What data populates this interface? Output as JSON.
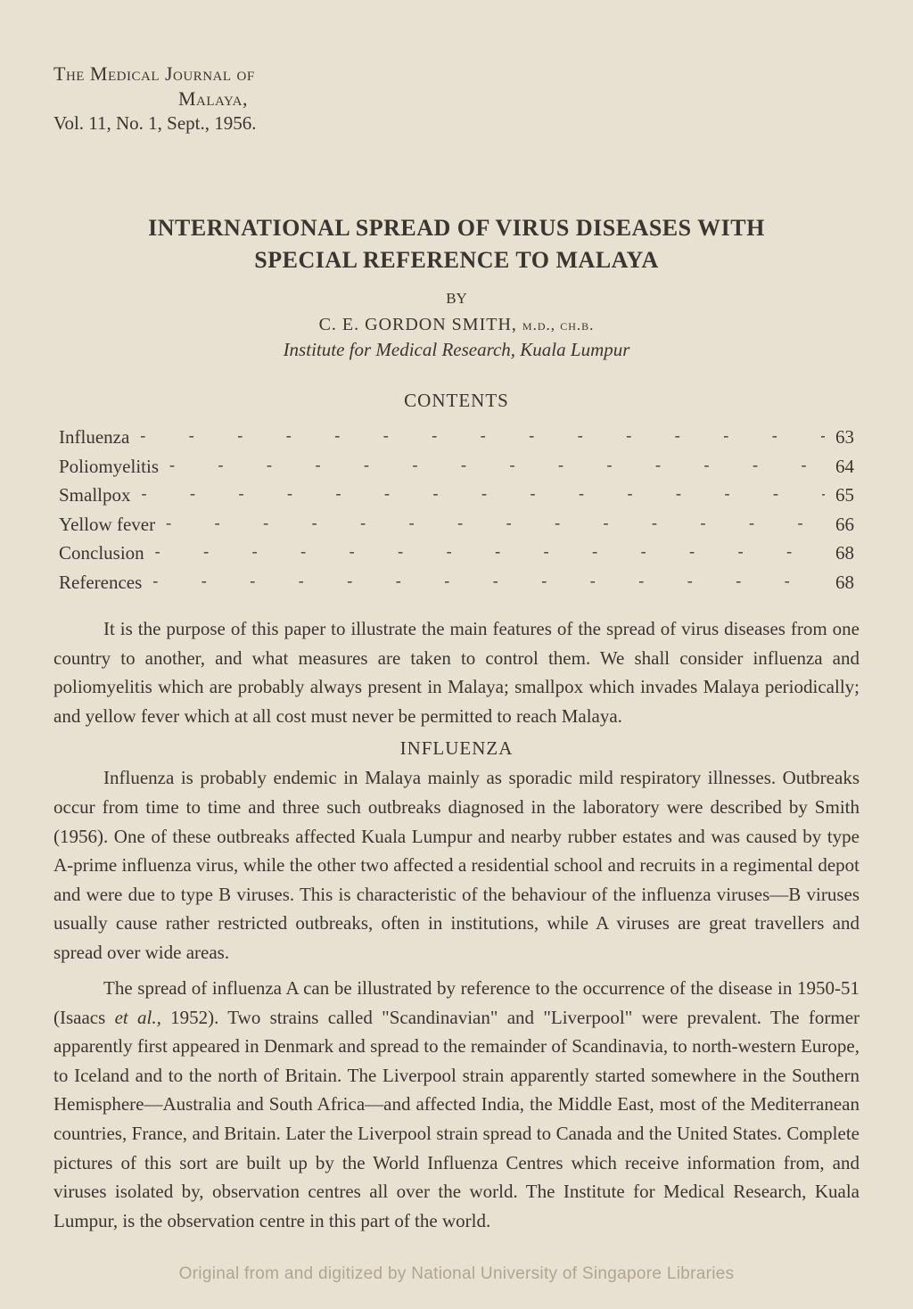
{
  "header": {
    "journal_title": "The Medical Journal of",
    "journal_subtitle": "Malaya,",
    "volume_info": "Vol. 11, No. 1, Sept., 1956."
  },
  "article": {
    "title_line1": "INTERNATIONAL SPREAD OF VIRUS DISEASES WITH",
    "title_line2": "SPECIAL REFERENCE TO MALAYA",
    "by": "BY",
    "author_name": "C. E. GORDON SMITH, ",
    "author_credentials": "m.d., ch.b.",
    "institute": "Institute for Medical Research, Kuala Lumpur"
  },
  "contents": {
    "heading": "CONTENTS",
    "items": [
      {
        "label": "Influenza",
        "page": "63"
      },
      {
        "label": "Poliomyelitis",
        "page": "64"
      },
      {
        "label": "Smallpox",
        "page": "65"
      },
      {
        "label": "Yellow fever",
        "page": "66"
      },
      {
        "label": "Conclusion",
        "page": "68"
      },
      {
        "label": "References",
        "page": "68"
      }
    ]
  },
  "paragraphs": {
    "intro": "It is the purpose of this paper to illustrate the main features of the spread of virus diseases from one country to another, and what measures are taken to control them. We shall consider influenza and poliomyelitis which are probably always present in Malaya; smallpox which invades Malaya periodically; and yellow fever which at all cost must never be permitted to reach Malaya.",
    "influenza_heading": "INFLUENZA",
    "influenza_p1": "Influenza is probably endemic in Malaya mainly as sporadic mild respiratory illnesses. Outbreaks occur from time to time and three such outbreaks diagnosed in the laboratory were described by Smith (1956). One of these outbreaks affected Kuala Lumpur and nearby rubber estates and was caused by type A-prime influenza virus, while the other two affected a residential school and recruits in a regimental depot and were due to type B viruses. This is characteristic of the behaviour of the influenza viruses—B viruses usually cause rather restricted outbreaks, often in institutions, while A viruses are great travellers and spread over wide areas.",
    "influenza_p2_part1": "The spread of influenza A can be illustrated by reference to the occurrence of the disease in 1950-51 (Isaacs ",
    "influenza_p2_italic": "et al.,",
    "influenza_p2_part2": " 1952). Two strains called \"Scandinavian\" and \"Liverpool\" were prevalent. The former apparently first appeared in Denmark and spread to the remainder of Scandinavia, to north-western Europe, to Iceland and to the north of Britain. The Liverpool strain apparently started somewhere in the Southern Hemisphere—Australia and South Africa—and affected India, the Middle East, most of the Mediterranean countries, France, and Britain. Later the Liverpool strain spread to Canada and the United States. Complete pictures of this sort are built up by the World Influenza Centres which receive information from, and viruses isolated by, observation centres all over the world. The Institute for Medical Research, Kuala Lumpur, is the observation centre in this part of the world."
  },
  "watermark": "Original from and digitized by National University of Singapore Libraries",
  "styling": {
    "background_color": "#e8e0d0",
    "text_color": "#3a3530",
    "watermark_color": "#b0a590",
    "body_font_size": 21,
    "title_font_size": 26
  }
}
